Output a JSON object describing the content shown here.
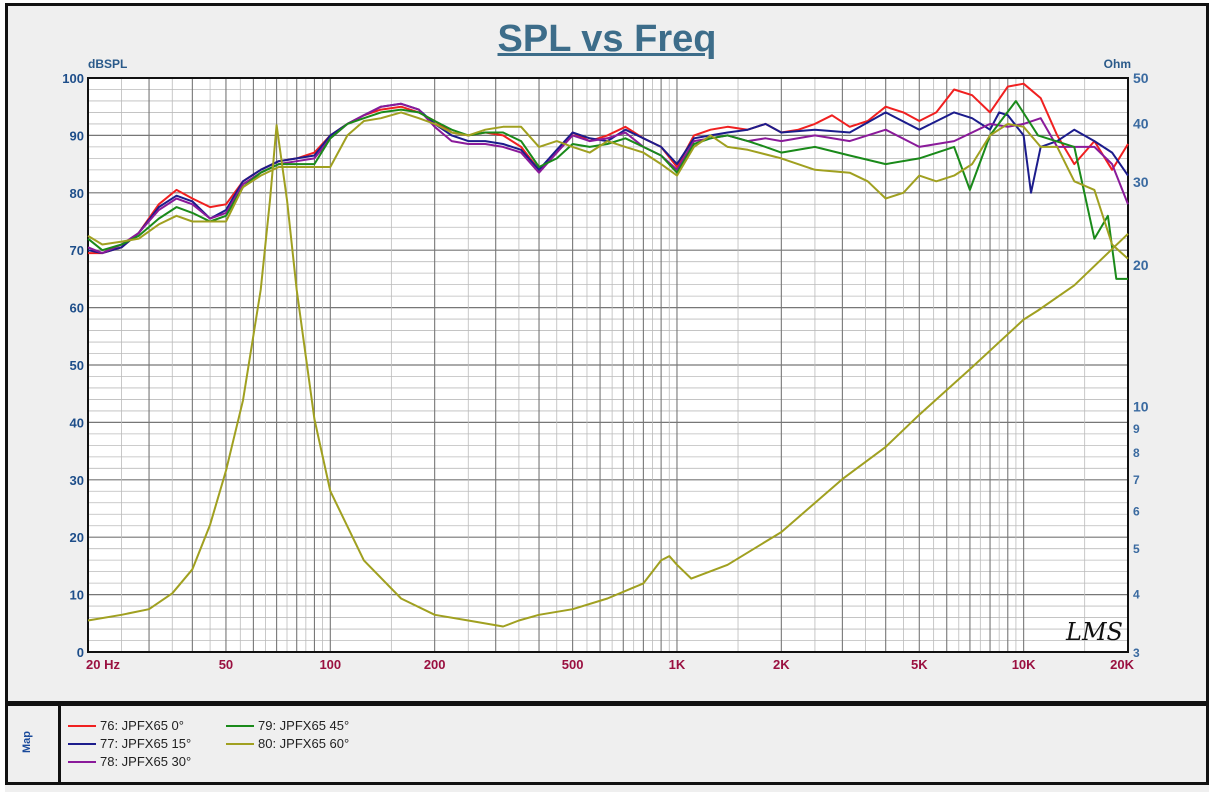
{
  "chart_data": {
    "type": "line",
    "title": "SPL vs Freq",
    "ylabel": "dBSPL",
    "y2label": "Ohm",
    "xscale": "log",
    "xlim": [
      20,
      20000
    ],
    "ylim": [
      0,
      100
    ],
    "y2lim": [
      3,
      50
    ],
    "y2scale": "log",
    "grid": true,
    "x_ticks": [
      {
        "v": 20,
        "label": "20 Hz"
      },
      {
        "v": 50,
        "label": "50"
      },
      {
        "v": 100,
        "label": "100"
      },
      {
        "v": 200,
        "label": "200"
      },
      {
        "v": 500,
        "label": "500"
      },
      {
        "v": 1000,
        "label": "1K"
      },
      {
        "v": 2000,
        "label": "2K"
      },
      {
        "v": 5000,
        "label": "5K"
      },
      {
        "v": 10000,
        "label": "10K"
      },
      {
        "v": 20000,
        "label": "20K"
      }
    ],
    "y_ticks": [
      0,
      10,
      20,
      30,
      40,
      50,
      60,
      70,
      80,
      90,
      100
    ],
    "y2_ticks": [
      3,
      4,
      5,
      6,
      7,
      8,
      9,
      10,
      20,
      30,
      40,
      50
    ],
    "watermark": "LMS",
    "side_label": "Map",
    "series": [
      {
        "name": "76: JPFX65  0°",
        "color": "#f02020",
        "axis": "left",
        "x": [
          20,
          22,
          25,
          28,
          32,
          36,
          40,
          45,
          50,
          56,
          63,
          71,
          80,
          90,
          100,
          112,
          125,
          140,
          160,
          180,
          200,
          224,
          250,
          280,
          315,
          355,
          400,
          450,
          500,
          560,
          630,
          710,
          800,
          900,
          1000,
          1120,
          1250,
          1400,
          1600,
          1800,
          2000,
          2240,
          2500,
          2800,
          3150,
          3550,
          4000,
          4500,
          5000,
          5600,
          6300,
          7100,
          8000,
          9000,
          10000,
          11200,
          12500,
          14000,
          16000,
          18000,
          20000
        ],
        "y": [
          69.5,
          69.5,
          70.5,
          73,
          78,
          80.5,
          79,
          77.5,
          78,
          82,
          84,
          85.5,
          86,
          87,
          90,
          92,
          93.5,
          94.5,
          95,
          94,
          92.5,
          90.5,
          90,
          90.5,
          90,
          88,
          84,
          87,
          90.5,
          89,
          90,
          91.5,
          89.5,
          88,
          84.5,
          90,
          91,
          91.5,
          91,
          92,
          90.5,
          91,
          92,
          93.5,
          91.5,
          92.5,
          95,
          94,
          92.5,
          94,
          98,
          97,
          94,
          98.5,
          99,
          96.5,
          90,
          85,
          89,
          84,
          88.5
        ]
      },
      {
        "name": "77: JPFX65  15°",
        "color": "#1c1c8c",
        "axis": "left",
        "x": [
          20,
          22,
          25,
          28,
          32,
          36,
          40,
          45,
          50,
          56,
          63,
          71,
          80,
          90,
          100,
          112,
          125,
          140,
          160,
          180,
          200,
          224,
          250,
          280,
          315,
          355,
          400,
          450,
          500,
          560,
          630,
          710,
          800,
          900,
          1000,
          1120,
          1250,
          1400,
          1600,
          1800,
          2000,
          2500,
          3150,
          4000,
          5000,
          6300,
          7100,
          8000,
          8500,
          9000,
          10000,
          10500,
          11200,
          12500,
          14000,
          16000,
          18000,
          20000
        ],
        "y": [
          70,
          69.5,
          70.5,
          73,
          77.5,
          79.5,
          78.5,
          75.5,
          77,
          82,
          84,
          85.5,
          86,
          86.5,
          90,
          92,
          93.5,
          95,
          95.5,
          94.5,
          92,
          90,
          89,
          89,
          88.5,
          87.5,
          84,
          87.5,
          90.5,
          89.5,
          89,
          91,
          89.5,
          88,
          85,
          89.5,
          90,
          90.5,
          91,
          92,
          90.5,
          91,
          90.5,
          94,
          91,
          94,
          93,
          91,
          94,
          93.5,
          90,
          80,
          88,
          89,
          91,
          89,
          87,
          83
        ]
      },
      {
        "name": "78: JPFX65  30°",
        "color": "#8a1a9a",
        "axis": "left",
        "x": [
          20,
          22,
          25,
          28,
          32,
          36,
          40,
          45,
          50,
          56,
          63,
          71,
          80,
          90,
          100,
          112,
          125,
          140,
          160,
          180,
          200,
          224,
          250,
          280,
          315,
          355,
          400,
          450,
          500,
          560,
          630,
          710,
          800,
          900,
          1000,
          1120,
          1250,
          1400,
          1600,
          1800,
          2000,
          2500,
          3150,
          4000,
          5000,
          6300,
          8000,
          9000,
          10000,
          11200,
          12500,
          14000,
          16000,
          18000,
          20000
        ],
        "y": [
          70.5,
          69.5,
          71,
          73,
          77,
          79,
          78,
          75.5,
          76.5,
          81.5,
          83.5,
          85,
          85.5,
          86,
          89.5,
          92,
          93.5,
          95,
          95.5,
          94.5,
          91.5,
          89,
          88.5,
          88.5,
          88,
          87,
          83.5,
          87,
          90,
          89,
          89.5,
          90.5,
          88,
          86.5,
          84,
          89,
          89.5,
          90,
          89,
          89.5,
          89,
          90,
          89,
          91,
          88,
          89,
          92,
          91.5,
          92,
          93,
          88,
          88,
          88,
          85,
          78
        ]
      },
      {
        "name": "79: JPFX65  45°",
        "color": "#1a8a1a",
        "axis": "left",
        "x": [
          20,
          22,
          25,
          28,
          32,
          36,
          40,
          45,
          50,
          56,
          63,
          71,
          80,
          90,
          100,
          112,
          125,
          140,
          160,
          180,
          200,
          224,
          250,
          280,
          315,
          355,
          400,
          450,
          500,
          560,
          630,
          710,
          800,
          900,
          1000,
          1120,
          1250,
          1400,
          1600,
          1800,
          2000,
          2500,
          3150,
          4000,
          5000,
          6300,
          7000,
          8000,
          9500,
          11000,
          14000,
          16000,
          17500,
          18500,
          20000
        ],
        "y": [
          72,
          70,
          71,
          72.5,
          75.5,
          77.5,
          76.5,
          75,
          76,
          81,
          83.5,
          85,
          85,
          85,
          89.5,
          92,
          93,
          94,
          94.5,
          94,
          92.5,
          91,
          90,
          90.5,
          90.5,
          89,
          84.5,
          86,
          88.5,
          88,
          88.5,
          89.5,
          88,
          86.5,
          83.5,
          88.5,
          89.5,
          90,
          89,
          88,
          87,
          88,
          86.5,
          85,
          86,
          88,
          80.5,
          90,
          96,
          90,
          88,
          72,
          76,
          65,
          65
        ]
      },
      {
        "name": "80: JPFX65  60°",
        "color": "#a0a020",
        "axis": "left",
        "x": [
          20,
          22,
          25,
          28,
          32,
          36,
          40,
          45,
          50,
          56,
          63,
          71,
          80,
          90,
          100,
          112,
          125,
          140,
          160,
          180,
          200,
          224,
          250,
          280,
          315,
          355,
          400,
          450,
          500,
          560,
          630,
          710,
          800,
          900,
          1000,
          1120,
          1250,
          1400,
          1600,
          2000,
          2500,
          3150,
          3550,
          4000,
          4500,
          5000,
          5600,
          6300,
          7100,
          8000,
          9000,
          10000,
          11200,
          12500,
          14000,
          16000,
          18000,
          20000
        ],
        "y": [
          72.5,
          71,
          71.5,
          72,
          74.5,
          76,
          75,
          75,
          75,
          81,
          83,
          84.5,
          84.5,
          84.5,
          84.5,
          90,
          92.5,
          93,
          94,
          93,
          92,
          90.5,
          90,
          91,
          91.5,
          91.5,
          88,
          89,
          88,
          87,
          89,
          88,
          87,
          85,
          83,
          88,
          90,
          88,
          87.5,
          86,
          84,
          83.5,
          82,
          79,
          80,
          83,
          82,
          83,
          85,
          90,
          92,
          91.5,
          88,
          88,
          82,
          80.5,
          71,
          68.5
        ]
      },
      {
        "name": "80: JPFX65  60° impedance",
        "color": "#a0a020",
        "axis": "right",
        "x": [
          20,
          25,
          30,
          35,
          40,
          45,
          50,
          56,
          63,
          67,
          70,
          75,
          80,
          90,
          100,
          125,
          160,
          200,
          250,
          315,
          350,
          400,
          500,
          630,
          800,
          900,
          950,
          1000,
          1100,
          1400,
          2000,
          3000,
          4000,
          5000,
          7000,
          10000,
          11000,
          14000,
          20000
        ],
        "y": [
          3.5,
          3.6,
          3.7,
          4.0,
          4.5,
          5.6,
          7.3,
          10.3,
          17.7,
          27.5,
          39.7,
          27.5,
          17.7,
          9.4,
          6.6,
          4.7,
          3.9,
          3.6,
          3.5,
          3.4,
          3.5,
          3.6,
          3.7,
          3.9,
          4.2,
          4.7,
          4.8,
          4.6,
          4.3,
          4.6,
          5.4,
          7.0,
          8.2,
          9.6,
          12.0,
          15.3,
          16.0,
          18.1,
          23.3
        ]
      }
    ]
  },
  "legend": [
    {
      "label": "76: JPFX65  0°",
      "color": "#f02020"
    },
    {
      "label": "77: JPFX65  15°",
      "color": "#1c1c8c"
    },
    {
      "label": "78: JPFX65  30°",
      "color": "#8a1a9a"
    },
    {
      "label": "79: JPFX65  45°",
      "color": "#1a8a1a"
    },
    {
      "label": "80: JPFX65  60°",
      "color": "#a0a020"
    }
  ]
}
